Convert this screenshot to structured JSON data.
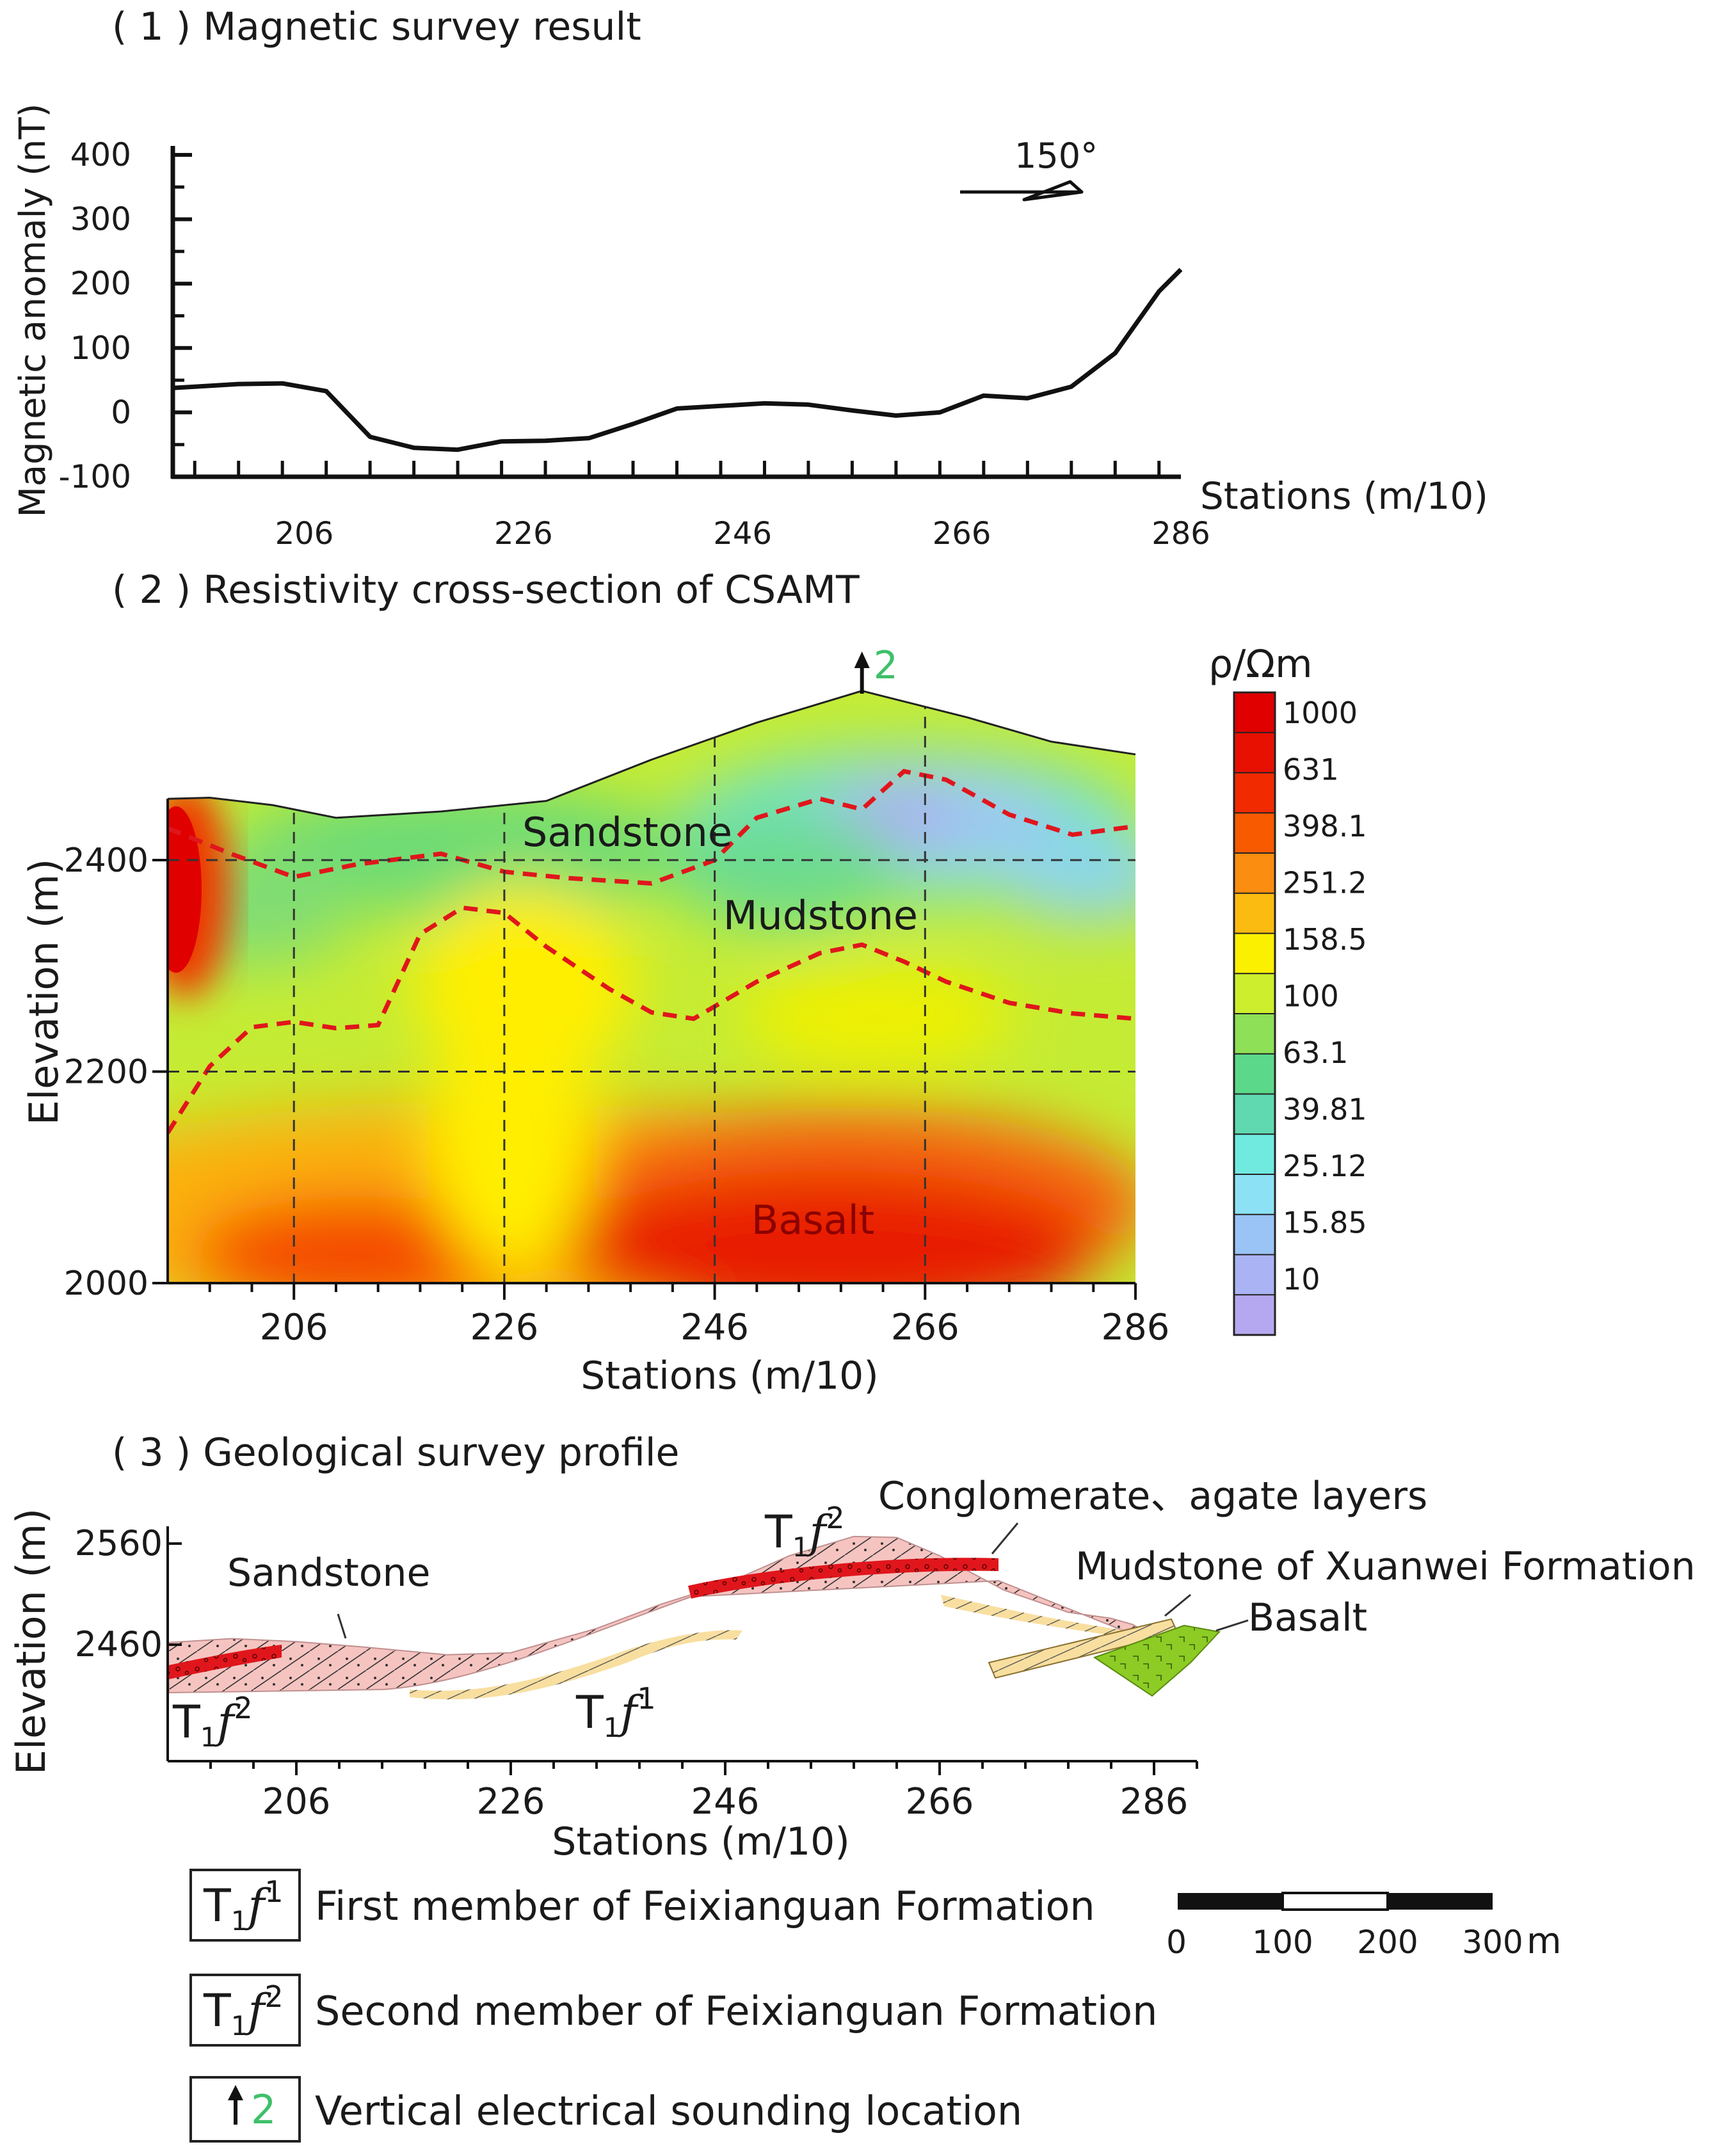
{
  "panel1": {
    "title": "( 1 ) Magnetic survey result",
    "ylabel": "Magnetic anomaly (nT)",
    "xlabel": "Stations (m/10)",
    "direction_label": "150°",
    "chart_data": {
      "type": "line",
      "title": "( 1 ) Magnetic survey result",
      "xlabel": "Stations (m/10)",
      "ylabel": "Magnetic anomaly (nT)",
      "xlim": [
        194,
        286
      ],
      "ylim": [
        -100,
        400
      ],
      "xticks": [
        206,
        226,
        246,
        266,
        286
      ],
      "yticks": [
        400,
        300,
        200,
        100,
        0,
        -100
      ],
      "x": [
        194,
        196,
        200,
        204,
        208,
        212,
        216,
        220,
        224,
        228,
        232,
        236,
        240,
        244,
        248,
        252,
        256,
        260,
        264,
        268,
        272,
        276,
        280,
        284,
        286
      ],
      "y": [
        38,
        40,
        44,
        45,
        33,
        -38,
        -55,
        -58,
        -45,
        -44,
        -40,
        -18,
        6,
        10,
        14,
        12,
        3,
        -5,
        0,
        26,
        22,
        40,
        92,
        188,
        222
      ]
    }
  },
  "panel2": {
    "title": "( 2 ) Resistivity cross-section of CSAMT",
    "ylabel": "Elevation (m)",
    "xlabel": "Stations (m/10)",
    "sounding_label": "2",
    "colorbar_title": "ρ/Ωm",
    "colorbar_labels": [
      "1000",
      "631",
      "398.1",
      "251.2",
      "158.5",
      "100",
      "63.1",
      "39.81",
      "25.12",
      "15.85",
      "10"
    ],
    "colorbar_colors": [
      "#e00000",
      "#e81000",
      "#f22a00",
      "#f85a00",
      "#fb8d10",
      "#fbbb10",
      "#fbf000",
      "#ccee2c",
      "#8ee056",
      "#5cd88a",
      "#60d8b0",
      "#70eadf",
      "#8ce2f4",
      "#9ac4f6",
      "#aab4f4",
      "#b6a8f0"
    ],
    "region_labels": {
      "sandstone": "Sandstone",
      "mudstone": "Mudstone",
      "basalt": "Basalt"
    },
    "chart_data": {
      "type": "heatmap",
      "title": "( 2 ) Resistivity cross-section of CSAMT",
      "xlabel": "Stations (m/10)",
      "ylabel": "Elevation (m)",
      "xlim": [
        194,
        286
      ],
      "ylim": [
        2000,
        2560
      ],
      "xticks": [
        206,
        226,
        246,
        266,
        286
      ],
      "yticks": [
        2400,
        2200,
        2000
      ],
      "colorbar_values": [
        1000,
        631,
        398.1,
        251.2,
        158.5,
        100,
        63.1,
        39.81,
        25.12,
        15.85,
        10
      ],
      "sounding_station": 260,
      "surface": {
        "x": [
          194,
          198,
          204,
          210,
          220,
          230,
          240,
          250,
          260,
          270,
          278,
          286
        ],
        "y": [
          2458,
          2459,
          2452,
          2440,
          2446,
          2456,
          2495,
          2530,
          2560,
          2535,
          2512,
          2500
        ]
      },
      "boundary_upper": {
        "x": [
          194,
          200,
          206,
          212,
          220,
          226,
          232,
          240,
          246,
          250,
          256,
          260,
          264,
          268,
          274,
          280,
          286
        ],
        "y": [
          2430,
          2406,
          2384,
          2396,
          2406,
          2389,
          2383,
          2378,
          2400,
          2440,
          2458,
          2448,
          2484,
          2476,
          2443,
          2424,
          2432
        ]
      },
      "boundary_lower": {
        "x": [
          194,
          198,
          202,
          206,
          210,
          214,
          218,
          222,
          226,
          230,
          236,
          240,
          244,
          250,
          256,
          260,
          264,
          268,
          274,
          280,
          286
        ],
        "y": [
          2142,
          2205,
          2242,
          2247,
          2241,
          2244,
          2330,
          2355,
          2350,
          2318,
          2278,
          2256,
          2250,
          2285,
          2312,
          2320,
          2304,
          2285,
          2265,
          2255,
          2250
        ]
      }
    }
  },
  "panel3": {
    "title": "( 3 ) Geological survey profile",
    "ylabel": "Elevation (m)",
    "xlabel": "Stations (m/10)",
    "labels": {
      "conglomerate": "Conglomerate、agate layers",
      "mudstone": "Mudstone of Xuanwei Formation",
      "basalt": "Basalt",
      "sandstone": "Sandstone"
    },
    "formation_symbol": "T",
    "formation_subscript": "1",
    "formation_letter": "f",
    "formation_superscripts": {
      "first": "1",
      "second": "2"
    },
    "chart_data": {
      "type": "area",
      "title": "( 3 ) Geological survey profile",
      "xlabel": "Stations (m/10)",
      "ylabel": "Elevation (m)",
      "xlim": [
        194,
        286
      ],
      "ylim": [
        2380,
        2580
      ],
      "xticks": [
        206,
        226,
        246,
        266,
        286
      ],
      "yticks": [
        2560,
        2460
      ],
      "surface": {
        "x": [
          194,
          200,
          206,
          212,
          220,
          226,
          234,
          240,
          246,
          252,
          258,
          262,
          266,
          272,
          278,
          282,
          284
        ],
        "y": [
          2462,
          2466,
          2463,
          2458,
          2450,
          2452,
          2476,
          2500,
          2520,
          2548,
          2567,
          2566,
          2548,
          2514,
          2492,
          2486,
          2480
        ]
      }
    }
  },
  "legend": {
    "items": [
      {
        "sup": "1",
        "text": "First member of Feixianguan Formation"
      },
      {
        "sup": "2",
        "text": "Second member of Feixianguan Formation"
      },
      {
        "sup": "2",
        "text": "Vertical electrical sounding location"
      }
    ]
  },
  "scalebar": {
    "labels": [
      "0",
      "100",
      "200",
      "300"
    ],
    "unit": "m"
  }
}
